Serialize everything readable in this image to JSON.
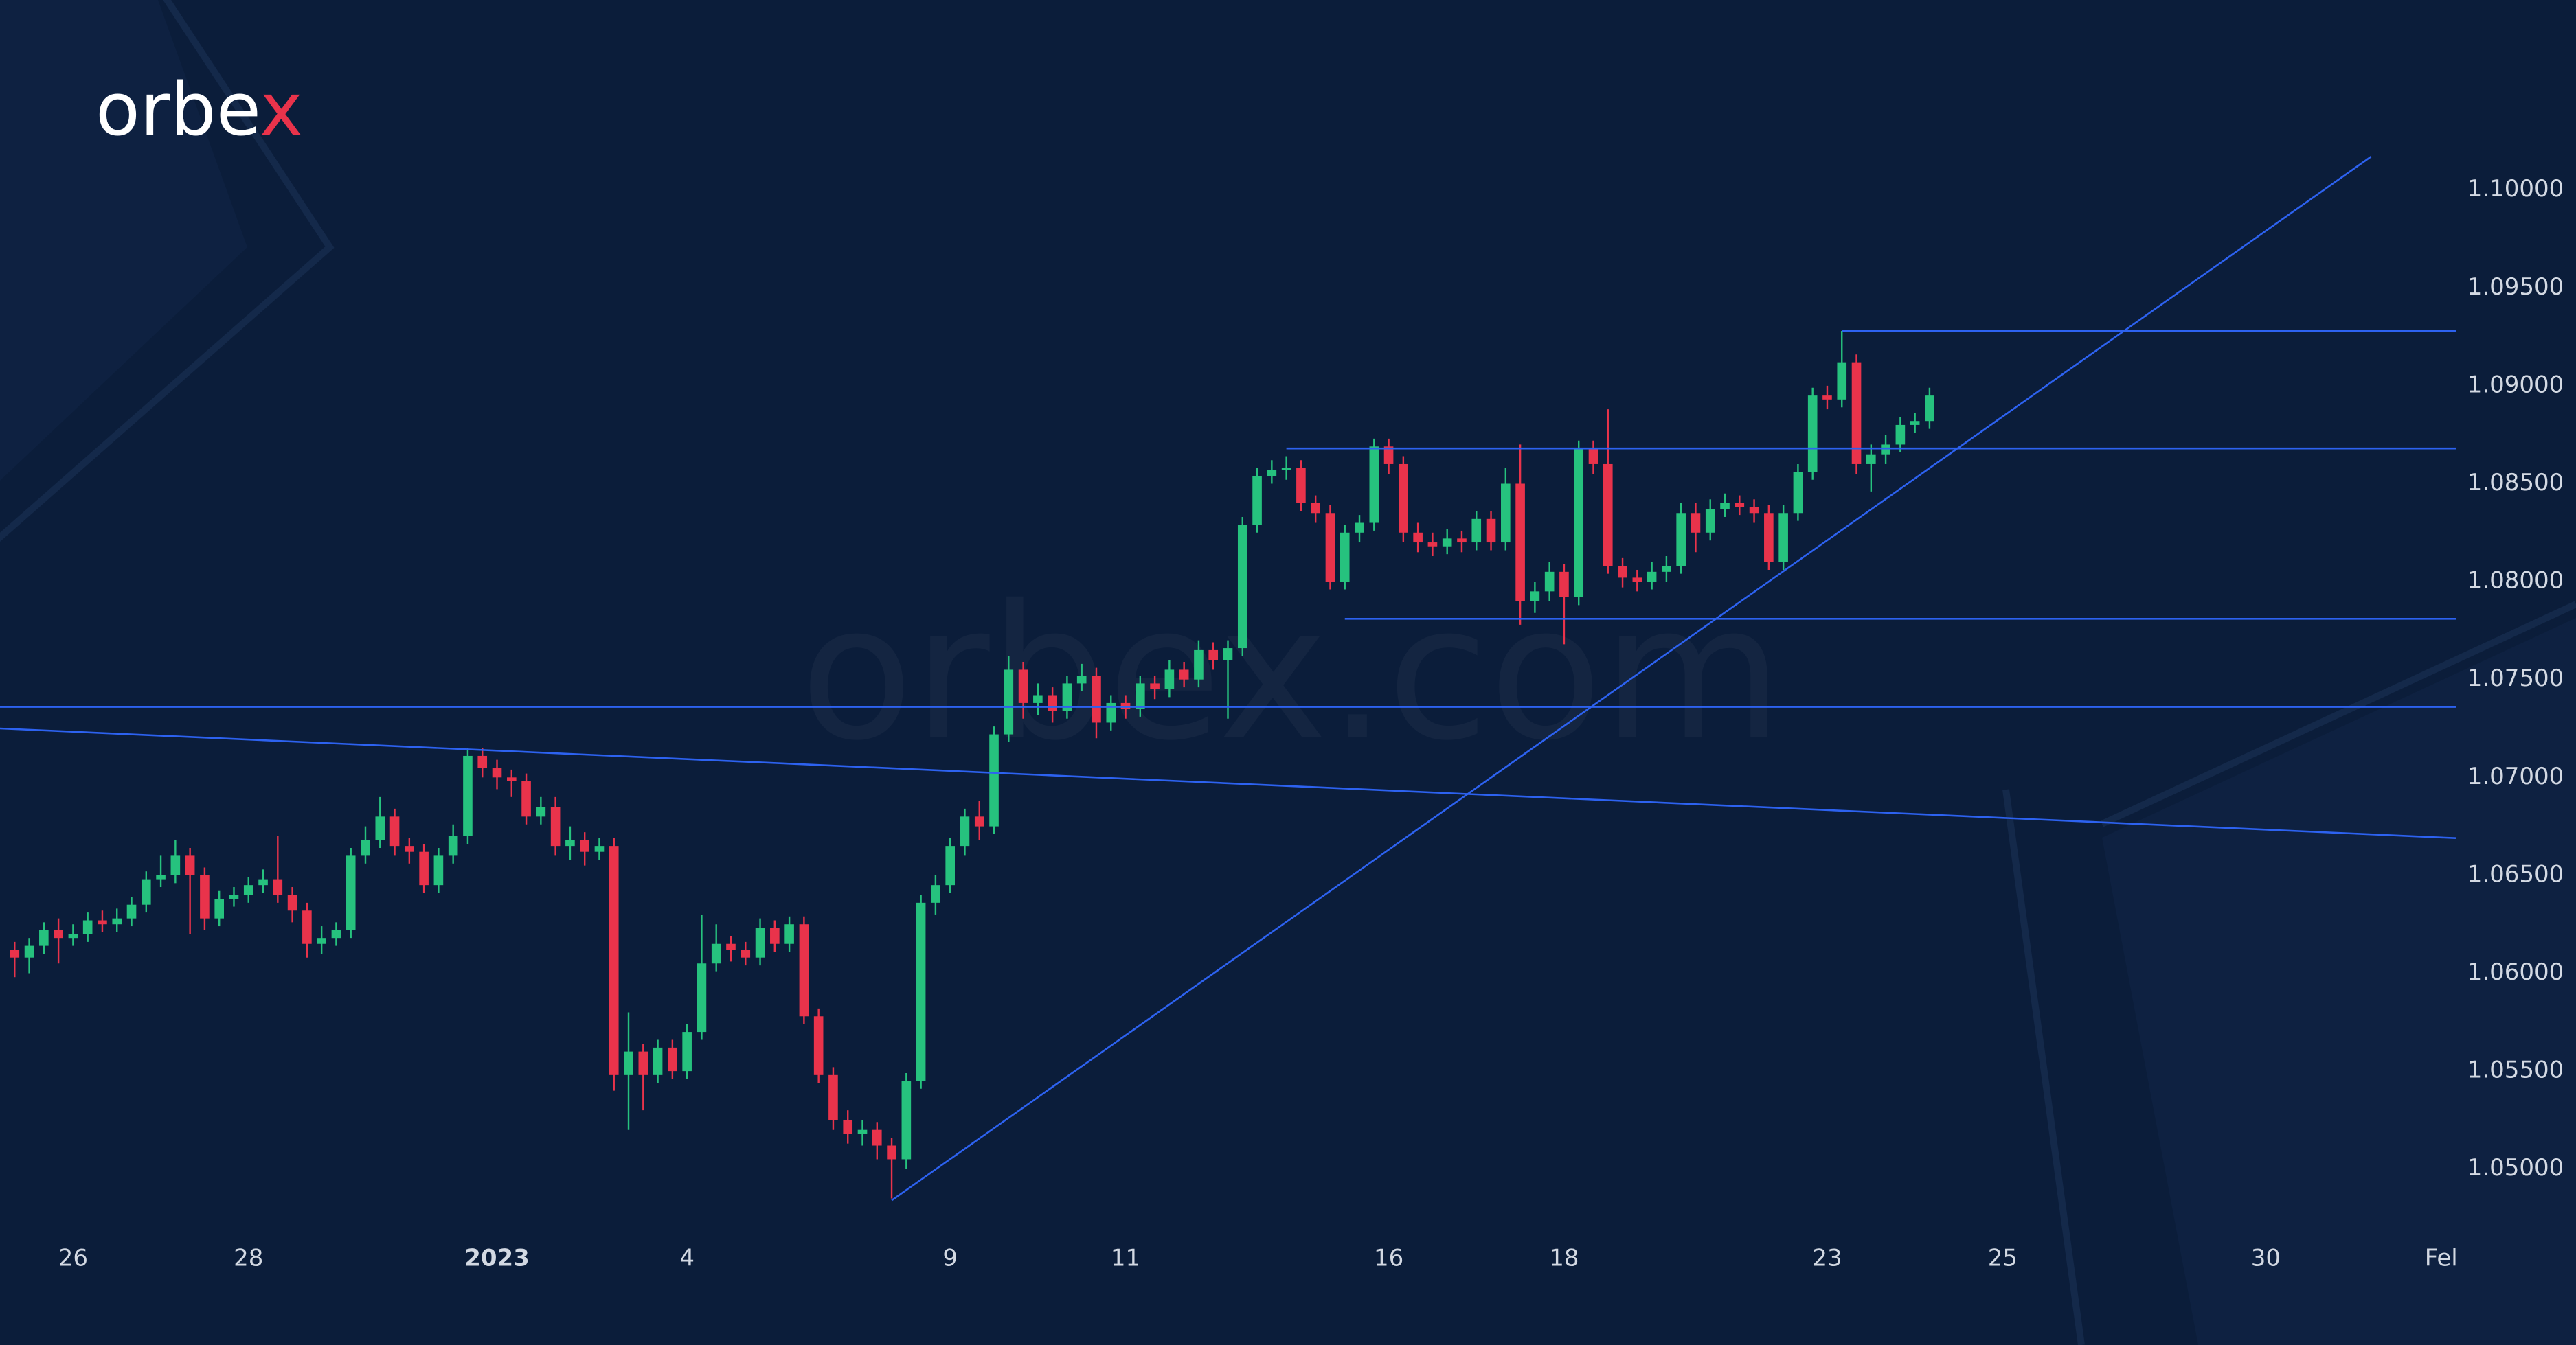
{
  "logo": {
    "main": "orbe",
    "accent": "x"
  },
  "watermark": "orbex.com",
  "chart_data": {
    "type": "candlestick",
    "up_color": "#26c27e",
    "down_color": "#e9334b",
    "line_color": "#2d62f0",
    "grid": false,
    "xlim": [
      -1,
      167
    ],
    "ylim": [
      1.0468,
      1.1097
    ],
    "xticks": [
      {
        "value": 4,
        "label": "26"
      },
      {
        "value": 16,
        "label": "28"
      },
      {
        "value": 33,
        "label": "2023"
      },
      {
        "value": 46,
        "label": "4"
      },
      {
        "value": 64,
        "label": "9"
      },
      {
        "value": 76,
        "label": "11"
      },
      {
        "value": 94,
        "label": "16"
      },
      {
        "value": 106,
        "label": "18"
      },
      {
        "value": 124,
        "label": "23"
      },
      {
        "value": 136,
        "label": "25"
      },
      {
        "value": 154,
        "label": "30"
      },
      {
        "value": 166,
        "label": "Fel"
      }
    ],
    "yticks": [
      {
        "value": 1.05,
        "label": "1.05000"
      },
      {
        "value": 1.055,
        "label": "1.05500"
      },
      {
        "value": 1.06,
        "label": "1.06000"
      },
      {
        "value": 1.065,
        "label": "1.06500"
      },
      {
        "value": 1.07,
        "label": "1.07000"
      },
      {
        "value": 1.075,
        "label": "1.07500"
      },
      {
        "value": 1.08,
        "label": "1.08000"
      },
      {
        "value": 1.085,
        "label": "1.08500"
      },
      {
        "value": 1.09,
        "label": "1.09000"
      },
      {
        "value": 1.095,
        "label": "1.09500"
      },
      {
        "value": 1.1,
        "label": "1.10000"
      }
    ],
    "open": [
      1.0612,
      1.0608,
      1.0614,
      1.0622,
      1.0618,
      1.062,
      1.0627,
      1.0625,
      1.0628,
      1.0635,
      1.0648,
      1.065,
      1.066,
      1.065,
      1.0628,
      1.0638,
      1.064,
      1.0645,
      1.0648,
      1.064,
      1.0632,
      1.0615,
      1.0618,
      1.0622,
      1.066,
      1.0668,
      1.068,
      1.0665,
      1.0662,
      1.0645,
      1.066,
      1.067,
      1.0711,
      1.0705,
      1.07,
      1.0698,
      1.068,
      1.0685,
      1.0665,
      1.0668,
      1.0662,
      1.0665,
      1.0548,
      1.056,
      1.0548,
      1.0562,
      1.055,
      1.057,
      1.0605,
      1.0615,
      1.0612,
      1.0608,
      1.0623,
      1.0615,
      1.0625,
      1.0578,
      1.0548,
      1.0525,
      1.0518,
      1.052,
      1.0512,
      1.0505,
      1.0545,
      1.0636,
      1.0645,
      1.0665,
      1.068,
      1.0675,
      1.0722,
      1.0755,
      1.0738,
      1.0742,
      1.0734,
      1.0748,
      1.0752,
      1.0728,
      1.0738,
      1.0735,
      1.0748,
      1.0745,
      1.0755,
      1.075,
      1.0765,
      1.076,
      1.0766,
      1.0829,
      1.0854,
      1.0857,
      1.0858,
      1.084,
      1.0835,
      1.08,
      1.0825,
      1.083,
      1.0869,
      1.086,
      1.0825,
      1.082,
      1.0818,
      1.0822,
      1.082,
      1.0832,
      1.082,
      1.085,
      1.079,
      1.0795,
      1.0805,
      1.0792,
      1.0868,
      1.086,
      1.0808,
      1.0802,
      1.08,
      1.0805,
      1.0808,
      1.0835,
      1.0825,
      1.0837,
      1.084,
      1.0838,
      1.0835,
      1.081,
      1.0835,
      1.0856,
      1.0895,
      1.0893,
      1.0912,
      1.086,
      1.0865,
      1.087,
      1.088,
      1.0882
    ],
    "high": [
      1.0616,
      1.0618,
      1.0626,
      1.0628,
      1.0625,
      1.0631,
      1.0632,
      1.0633,
      1.0639,
      1.0652,
      1.066,
      1.0668,
      1.0664,
      1.0654,
      1.0642,
      1.0644,
      1.0649,
      1.0653,
      1.067,
      1.0644,
      1.0636,
      1.0624,
      1.0626,
      1.0664,
      1.0675,
      1.069,
      1.0684,
      1.0669,
      1.0666,
      1.0664,
      1.0676,
      1.0715,
      1.0715,
      1.0709,
      1.0704,
      1.0702,
      1.069,
      1.069,
      1.0675,
      1.0672,
      1.0669,
      1.0669,
      1.058,
      1.0564,
      1.0566,
      1.0566,
      1.0574,
      1.063,
      1.0625,
      1.0619,
      1.0616,
      1.0628,
      1.0627,
      1.0629,
      1.0629,
      1.0582,
      1.0552,
      1.053,
      1.0525,
      1.0524,
      1.0516,
      1.0549,
      1.064,
      1.065,
      1.0669,
      1.0684,
      1.0688,
      1.0726,
      1.0762,
      1.0759,
      1.0748,
      1.0746,
      1.0752,
      1.0758,
      1.0756,
      1.0742,
      1.0742,
      1.0752,
      1.0752,
      1.076,
      1.0759,
      1.077,
      1.0769,
      1.077,
      1.0833,
      1.0858,
      1.0862,
      1.0864,
      1.0862,
      1.0844,
      1.0839,
      1.0829,
      1.0834,
      1.0873,
      1.0873,
      1.0864,
      1.083,
      1.0825,
      1.0827,
      1.0826,
      1.0836,
      1.0836,
      1.0858,
      1.087,
      1.08,
      1.081,
      1.0809,
      1.0872,
      1.0872,
      1.0888,
      1.0812,
      1.0806,
      1.081,
      1.0813,
      1.084,
      1.084,
      1.0842,
      1.0845,
      1.0844,
      1.0842,
      1.0839,
      1.0839,
      1.086,
      1.0899,
      1.09,
      1.0928,
      1.0916,
      1.087,
      1.0875,
      1.0884,
      1.0886,
      1.0899
    ],
    "low": [
      1.0598,
      1.06,
      1.061,
      1.0605,
      1.0614,
      1.0616,
      1.0621,
      1.0621,
      1.0624,
      1.0631,
      1.0644,
      1.0646,
      1.062,
      1.0622,
      1.0624,
      1.0634,
      1.0636,
      1.0641,
      1.0636,
      1.0626,
      1.0608,
      1.061,
      1.0614,
      1.0618,
      1.0656,
      1.0664,
      1.066,
      1.0656,
      1.0641,
      1.0641,
      1.0656,
      1.0666,
      1.07,
      1.0694,
      1.069,
      1.0676,
      1.0676,
      1.066,
      1.0658,
      1.0655,
      1.0658,
      1.054,
      1.052,
      1.053,
      1.0544,
      1.0546,
      1.0546,
      1.0566,
      1.0601,
      1.0606,
      1.0604,
      1.0604,
      1.0611,
      1.0611,
      1.0574,
      1.0544,
      1.052,
      1.0513,
      1.0512,
      1.0505,
      1.0485,
      1.05,
      1.0541,
      1.063,
      1.0641,
      1.066,
      1.0668,
      1.0671,
      1.0718,
      1.073,
      1.0732,
      1.0728,
      1.073,
      1.0744,
      1.072,
      1.0724,
      1.073,
      1.0731,
      1.074,
      1.0741,
      1.0746,
      1.0746,
      1.0755,
      1.073,
      1.0762,
      1.0825,
      1.085,
      1.0852,
      1.0836,
      1.083,
      1.0796,
      1.0796,
      1.082,
      1.0826,
      1.0855,
      1.082,
      1.0815,
      1.0813,
      1.0814,
      1.0815,
      1.0816,
      1.0816,
      1.0816,
      1.0778,
      1.0784,
      1.079,
      1.0768,
      1.0788,
      1.0855,
      1.0804,
      1.0797,
      1.0795,
      1.0796,
      1.08,
      1.0804,
      1.0815,
      1.0821,
      1.0833,
      1.0834,
      1.083,
      1.0806,
      1.0806,
      1.0831,
      1.0852,
      1.0888,
      1.0889,
      1.0855,
      1.0846,
      1.086,
      1.0866,
      1.0876,
      1.0878
    ],
    "close": [
      1.0608,
      1.0614,
      1.0622,
      1.0618,
      1.062,
      1.0627,
      1.0625,
      1.0628,
      1.0635,
      1.0648,
      1.065,
      1.066,
      1.065,
      1.0628,
      1.0638,
      1.064,
      1.0645,
      1.0648,
      1.064,
      1.0632,
      1.0615,
      1.0618,
      1.0622,
      1.066,
      1.0668,
      1.068,
      1.0665,
      1.0662,
      1.0645,
      1.066,
      1.067,
      1.0711,
      1.0705,
      1.07,
      1.0698,
      1.068,
      1.0685,
      1.0665,
      1.0668,
      1.0662,
      1.0665,
      1.0548,
      1.056,
      1.0548,
      1.0562,
      1.055,
      1.057,
      1.0605,
      1.0615,
      1.0612,
      1.0608,
      1.0623,
      1.0615,
      1.0625,
      1.0578,
      1.0548,
      1.0525,
      1.0518,
      1.052,
      1.0512,
      1.0505,
      1.0545,
      1.0636,
      1.0645,
      1.0665,
      1.068,
      1.0675,
      1.0722,
      1.0755,
      1.0738,
      1.0742,
      1.0734,
      1.0748,
      1.0752,
      1.0728,
      1.0738,
      1.0735,
      1.0748,
      1.0745,
      1.0755,
      1.075,
      1.0765,
      1.076,
      1.0766,
      1.0829,
      1.0854,
      1.0857,
      1.0858,
      1.084,
      1.0835,
      1.08,
      1.0825,
      1.083,
      1.0869,
      1.086,
      1.0825,
      1.082,
      1.0818,
      1.0822,
      1.082,
      1.0832,
      1.082,
      1.085,
      1.079,
      1.0795,
      1.0805,
      1.0792,
      1.0868,
      1.086,
      1.0808,
      1.0802,
      1.08,
      1.0805,
      1.0808,
      1.0835,
      1.0825,
      1.0837,
      1.084,
      1.0838,
      1.0835,
      1.081,
      1.0835,
      1.0856,
      1.0895,
      1.0893,
      1.0912,
      1.086,
      1.0865,
      1.087,
      1.088,
      1.0882,
      1.0895
    ],
    "lines": [
      {
        "x": [
          125,
          167
        ],
        "y": [
          1.0928,
          1.0928
        ]
      },
      {
        "x": [
          87,
          167
        ],
        "y": [
          1.0868,
          1.0868
        ]
      },
      {
        "x": [
          91,
          167
        ],
        "y": [
          1.0781,
          1.0781
        ]
      },
      {
        "x": [
          -1,
          167
        ],
        "y": [
          1.0736,
          1.0736
        ]
      },
      {
        "x": [
          -1,
          167
        ],
        "y": [
          1.0725,
          1.0669
        ]
      },
      {
        "x": [
          60,
          161.2
        ],
        "y": [
          1.0484,
          1.1017
        ]
      }
    ]
  }
}
